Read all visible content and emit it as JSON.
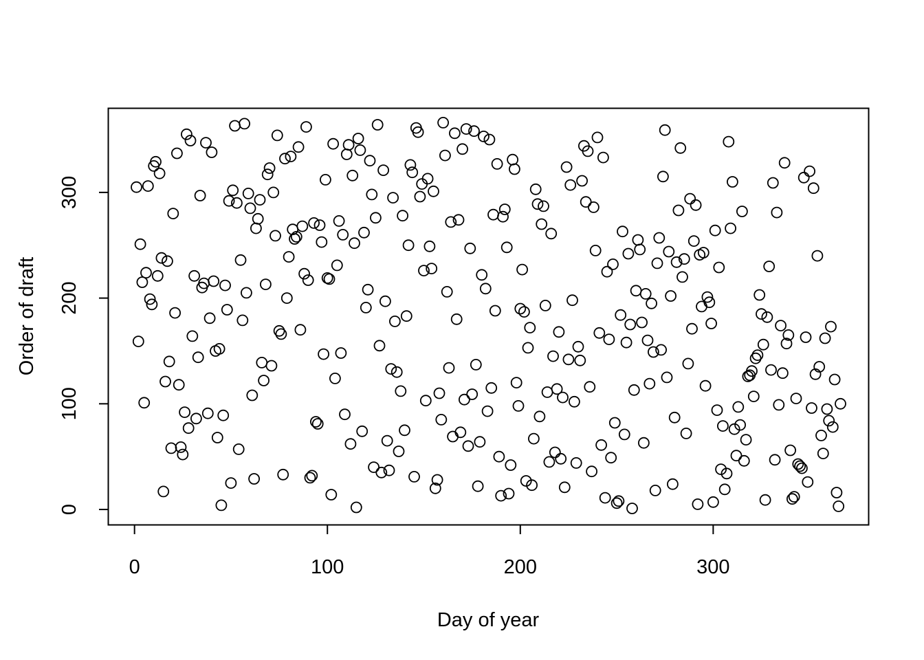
{
  "chart_data": {
    "type": "scatter",
    "title": "",
    "xlabel": "Day of year",
    "ylabel": "Order of draft",
    "xlim": [
      -13.6,
      380.6
    ],
    "ylim": [
      -14.6,
      379.6
    ],
    "x_ticks": [
      0,
      100,
      200,
      300
    ],
    "y_ticks": [
      0,
      100,
      200,
      300
    ],
    "grid": false,
    "marker": "open-circle",
    "color": "#000000",
    "x": [
      1,
      2,
      3,
      4,
      5,
      6,
      7,
      8,
      9,
      10,
      11,
      12,
      13,
      14,
      15,
      16,
      17,
      18,
      19,
      20,
      21,
      22,
      23,
      24,
      25,
      26,
      27,
      28,
      29,
      30,
      31,
      32,
      33,
      34,
      35,
      36,
      37,
      38,
      39,
      40,
      41,
      42,
      43,
      44,
      45,
      46,
      47,
      48,
      49,
      50,
      51,
      52,
      53,
      54,
      55,
      56,
      57,
      58,
      59,
      60,
      61,
      62,
      63,
      64,
      65,
      66,
      67,
      68,
      69,
      70,
      71,
      72,
      73,
      74,
      75,
      76,
      77,
      78,
      79,
      80,
      81,
      82,
      83,
      84,
      85,
      86,
      87,
      88,
      89,
      90,
      91,
      92,
      93,
      94,
      95,
      96,
      97,
      98,
      99,
      100,
      101,
      102,
      103,
      104,
      105,
      106,
      107,
      108,
      109,
      110,
      111,
      112,
      113,
      114,
      115,
      116,
      117,
      118,
      119,
      120,
      121,
      122,
      123,
      124,
      125,
      126,
      127,
      128,
      129,
      130,
      131,
      132,
      133,
      134,
      135,
      136,
      137,
      138,
      139,
      140,
      141,
      142,
      143,
      144,
      145,
      146,
      147,
      148,
      149,
      150,
      151,
      152,
      153,
      154,
      155,
      156,
      157,
      158,
      159,
      160,
      161,
      162,
      163,
      164,
      165,
      166,
      167,
      168,
      169,
      170,
      171,
      172,
      173,
      174,
      175,
      176,
      177,
      178,
      179,
      180,
      181,
      182,
      183,
      184,
      185,
      186,
      187,
      188,
      189,
      190,
      191,
      192,
      193,
      194,
      195,
      196,
      197,
      198,
      199,
      200,
      201,
      202,
      203,
      204,
      205,
      206,
      207,
      208,
      209,
      210,
      211,
      212,
      213,
      214,
      215,
      216,
      217,
      218,
      219,
      220,
      221,
      222,
      223,
      224,
      225,
      226,
      227,
      228,
      229,
      230,
      231,
      232,
      233,
      234,
      235,
      236,
      237,
      238,
      239,
      240,
      241,
      242,
      243,
      244,
      245,
      246,
      247,
      248,
      249,
      250,
      251,
      252,
      253,
      254,
      255,
      256,
      257,
      258,
      259,
      260,
      261,
      262,
      263,
      264,
      265,
      266,
      267,
      268,
      269,
      270,
      271,
      272,
      273,
      274,
      275,
      276,
      277,
      278,
      279,
      280,
      281,
      282,
      283,
      284,
      285,
      286,
      287,
      288,
      289,
      290,
      291,
      292,
      293,
      294,
      295,
      296,
      297,
      298,
      299,
      300,
      301,
      302,
      303,
      304,
      305,
      306,
      307,
      308,
      309,
      310,
      311,
      312,
      313,
      314,
      315,
      316,
      317,
      318,
      319,
      320,
      321,
      322,
      323,
      324,
      325,
      326,
      327,
      328,
      329,
      330,
      331,
      332,
      333,
      334,
      335,
      336,
      337,
      338,
      339,
      340,
      341,
      342,
      343,
      344,
      345,
      346,
      347,
      348,
      349,
      350,
      351,
      352,
      353,
      354,
      355,
      356,
      357,
      358,
      359,
      360,
      361,
      362,
      363,
      364,
      365,
      366
    ],
    "y": [
      305,
      159,
      251,
      215,
      101,
      224,
      306,
      199,
      194,
      325,
      329,
      221,
      318,
      238,
      17,
      121,
      235,
      140,
      58,
      280,
      186,
      337,
      118,
      59,
      52,
      92,
      355,
      77,
      349,
      164,
      221,
      86,
      144,
      297,
      210,
      214,
      347,
      91,
      181,
      338,
      216,
      150,
      68,
      152,
      4,
      89,
      212,
      189,
      292,
      25,
      302,
      363,
      290,
      57,
      236,
      179,
      365,
      205,
      299,
      285,
      108,
      29,
      266,
      275,
      293,
      139,
      122,
      213,
      317,
      323,
      136,
      300,
      259,
      354,
      169,
      166,
      33,
      332,
      200,
      239,
      334,
      265,
      256,
      258,
      343,
      170,
      268,
      223,
      362,
      217,
      30,
      32,
      271,
      83,
      81,
      269,
      253,
      147,
      312,
      219,
      218,
      14,
      346,
      124,
      231,
      273,
      148,
      260,
      90,
      336,
      345,
      62,
      316,
      252,
      2,
      351,
      340,
      74,
      262,
      191,
      208,
      330,
      298,
      40,
      276,
      364,
      155,
      35,
      321,
      197,
      65,
      37,
      133,
      295,
      178,
      130,
      55,
      112,
      278,
      75,
      183,
      250,
      326,
      319,
      31,
      361,
      357,
      296,
      308,
      226,
      103,
      313,
      249,
      228,
      301,
      20,
      28,
      110,
      85,
      366,
      335,
      206,
      134,
      272,
      69,
      356,
      180,
      274,
      73,
      341,
      104,
      360,
      60,
      247,
      109,
      358,
      137,
      22,
      64,
      222,
      353,
      209,
      93,
      350,
      115,
      279,
      188,
      327,
      50,
      13,
      277,
      284,
      248,
      15,
      42,
      331,
      322,
      120,
      98,
      190,
      227,
      187,
      27,
      153,
      172,
      23,
      67,
      303,
      289,
      88,
      270,
      287,
      193,
      111,
      45,
      261,
      145,
      54,
      114,
      168,
      48,
      106,
      21,
      324,
      142,
      307,
      198,
      102,
      44,
      154,
      141,
      311,
      344,
      291,
      339,
      116,
      36,
      286,
      245,
      352,
      167,
      61,
      333,
      11,
      225,
      161,
      49,
      232,
      82,
      6,
      8,
      184,
      263,
      71,
      158,
      242,
      175,
      1,
      113,
      207,
      255,
      246,
      177,
      63,
      204,
      160,
      119,
      195,
      149,
      18,
      233,
      257,
      151,
      315,
      359,
      125,
      244,
      202,
      24,
      87,
      234,
      283,
      342,
      220,
      237,
      72,
      138,
      294,
      171,
      254,
      288,
      5,
      241,
      192,
      243,
      117,
      201,
      196,
      176,
      7,
      264,
      94,
      229,
      38,
      79,
      19,
      34,
      348,
      266,
      310,
      76,
      51,
      97,
      80,
      282,
      46,
      66,
      126,
      127,
      131,
      107,
      143,
      146,
      203,
      185,
      156,
      9,
      182,
      230,
      132,
      309,
      47,
      281,
      99,
      174,
      129,
      328,
      157,
      165,
      56,
      10,
      12,
      105,
      43,
      41,
      39,
      314,
      163,
      26,
      320,
      96,
      304,
      128,
      240,
      135,
      70,
      53,
      162,
      95,
      84,
      173,
      78,
      123,
      16,
      3,
      100
    ],
    "n_points": 366
  }
}
